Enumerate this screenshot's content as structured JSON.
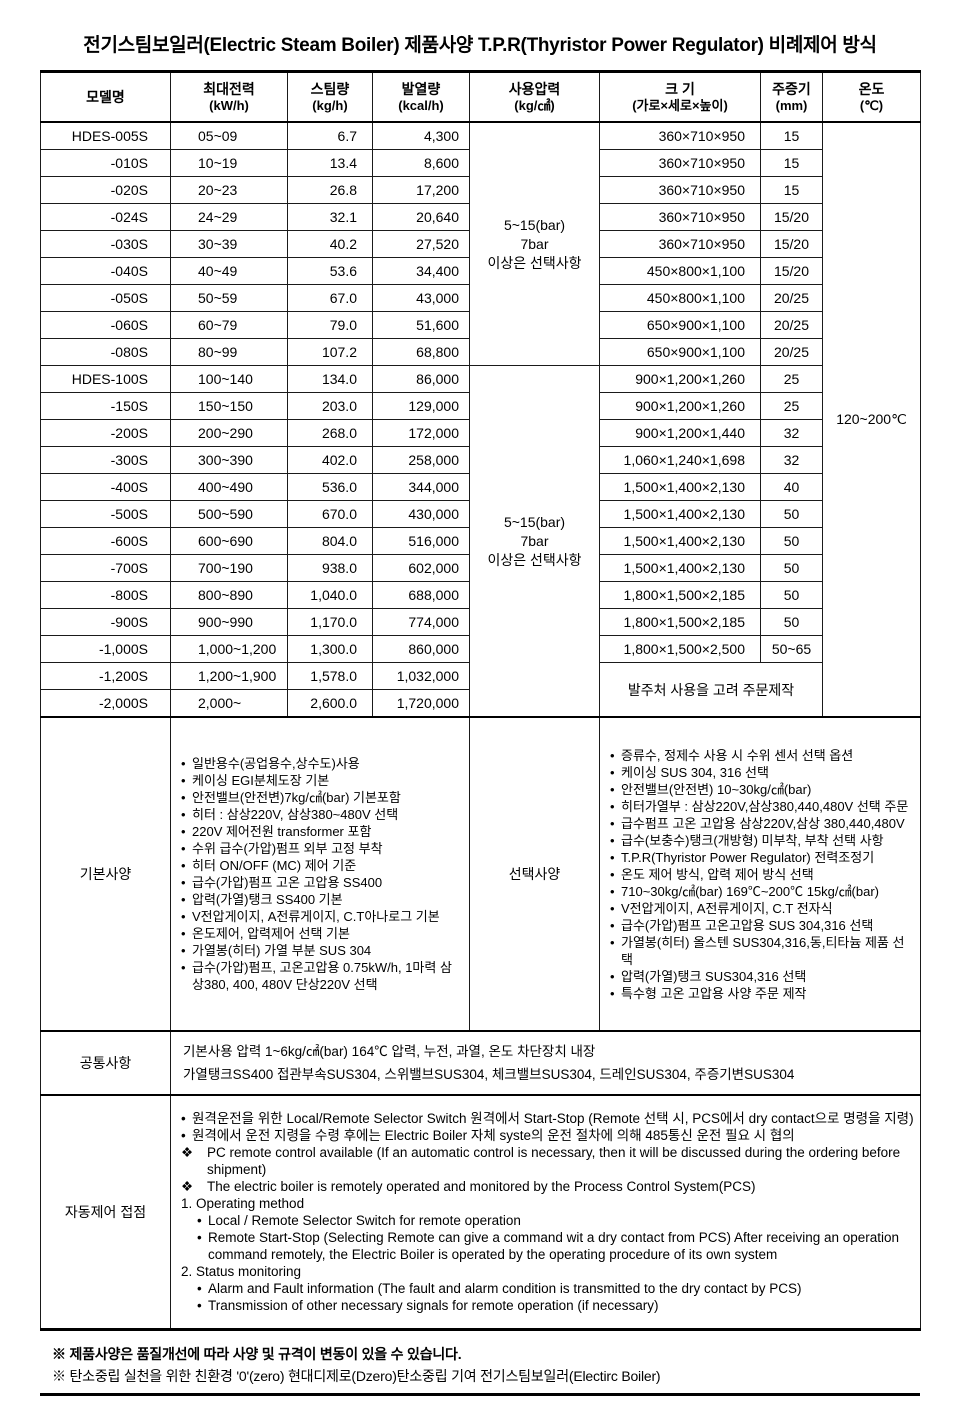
{
  "title": "전기스팀보일러(Electric Steam Boiler) 제품사양 T.P.R(Thyristor Power Regulator) 비례제어 방식",
  "spec_table": {
    "columns": [
      {
        "label": "모델명",
        "unit": ""
      },
      {
        "label": "최대전력",
        "unit": "(kW/h)"
      },
      {
        "label": "스팀량",
        "unit": "(kg/h)"
      },
      {
        "label": "발열량",
        "unit": "(kcal/h)"
      },
      {
        "label": "사용압력",
        "unit": "(kg/㎠)"
      },
      {
        "label": "크 기",
        "unit": "(가로×세로×높이)"
      },
      {
        "label": "주증기",
        "unit": "(mm)"
      },
      {
        "label": "온도",
        "unit": "(℃)"
      }
    ],
    "pressure_groups": [
      {
        "text": "5~15(bar)\n7bar\n이상은 선택사항",
        "rows": 9
      },
      {
        "text": "5~15(bar)\n7bar\n이상은 선택사항",
        "rows": 13
      }
    ],
    "temperature": {
      "text": "120~200℃",
      "rows": 22
    },
    "custom_note": {
      "text": "발주처 사용을 고려 주문제작",
      "rows": 2,
      "cols": 2
    },
    "rows": [
      {
        "model": "HDES-005S",
        "power": "05~09",
        "steam": "6.7",
        "heat": "4,300",
        "size": "360×710×950",
        "pipe": "15"
      },
      {
        "model": "-010S",
        "power": "10~19",
        "steam": "13.4",
        "heat": "8,600",
        "size": "360×710×950",
        "pipe": "15"
      },
      {
        "model": "-020S",
        "power": "20~23",
        "steam": "26.8",
        "heat": "17,200",
        "size": "360×710×950",
        "pipe": "15"
      },
      {
        "model": "-024S",
        "power": "24~29",
        "steam": "32.1",
        "heat": "20,640",
        "size": "360×710×950",
        "pipe": "15/20"
      },
      {
        "model": "-030S",
        "power": "30~39",
        "steam": "40.2",
        "heat": "27,520",
        "size": "360×710×950",
        "pipe": "15/20"
      },
      {
        "model": "-040S",
        "power": "40~49",
        "steam": "53.6",
        "heat": "34,400",
        "size": "450×800×1,100",
        "pipe": "15/20"
      },
      {
        "model": "-050S",
        "power": "50~59",
        "steam": "67.0",
        "heat": "43,000",
        "size": "450×800×1,100",
        "pipe": "20/25"
      },
      {
        "model": "-060S",
        "power": "60~79",
        "steam": "79.0",
        "heat": "51,600",
        "size": "650×900×1,100",
        "pipe": "20/25"
      },
      {
        "model": "-080S",
        "power": "80~99",
        "steam": "107.2",
        "heat": "68,800",
        "size": "650×900×1,100",
        "pipe": "20/25"
      },
      {
        "model": "HDES-100S",
        "power": "100~140",
        "steam": "134.0",
        "heat": "86,000",
        "size": "900×1,200×1,260",
        "pipe": "25"
      },
      {
        "model": "-150S",
        "power": "150~150",
        "steam": "203.0",
        "heat": "129,000",
        "size": "900×1,200×1,260",
        "pipe": "25"
      },
      {
        "model": "-200S",
        "power": "200~290",
        "steam": "268.0",
        "heat": "172,000",
        "size": "900×1,200×1,440",
        "pipe": "32"
      },
      {
        "model": "-300S",
        "power": "300~390",
        "steam": "402.0",
        "heat": "258,000",
        "size": "1,060×1,240×1,698",
        "pipe": "32"
      },
      {
        "model": "-400S",
        "power": "400~490",
        "steam": "536.0",
        "heat": "344,000",
        "size": "1,500×1,400×2,130",
        "pipe": "40"
      },
      {
        "model": "-500S",
        "power": "500~590",
        "steam": "670.0",
        "heat": "430,000",
        "size": "1,500×1,400×2,130",
        "pipe": "50"
      },
      {
        "model": "-600S",
        "power": "600~690",
        "steam": "804.0",
        "heat": "516,000",
        "size": "1,500×1,400×2,130",
        "pipe": "50"
      },
      {
        "model": "-700S",
        "power": "700~190",
        "steam": "938.0",
        "heat": "602,000",
        "size": "1,500×1,400×2,130",
        "pipe": "50"
      },
      {
        "model": "-800S",
        "power": "800~890",
        "steam": "1,040.0",
        "heat": "688,000",
        "size": "1,800×1,500×2,185",
        "pipe": "50"
      },
      {
        "model": "-900S",
        "power": "900~990",
        "steam": "1,170.0",
        "heat": "774,000",
        "size": "1,800×1,500×2,185",
        "pipe": "50"
      },
      {
        "model": "-1,000S",
        "power": "1,000~1,200",
        "steam": "1,300.0",
        "heat": "860,000",
        "size": "1,800×1,500×2,500",
        "pipe": "50~65"
      },
      {
        "model": "-1,200S",
        "power": "1,200~1,900",
        "steam": "1,578.0",
        "heat": "1,032,000"
      },
      {
        "model": "-2,000S",
        "power": "2,000~",
        "steam": "2,600.0",
        "heat": "1,720,000"
      }
    ]
  },
  "basic_spec": {
    "label": "기본사양",
    "items": [
      "일반용수(공업용수,상수도)사용",
      "케이싱 EGI분체도장 기본",
      "안전밸브(안전변)7kg/㎠(bar) 기본포함",
      "히터 : 삼상220V, 삼상380~480V 선택",
      "220V 제어전원 transformer 포함",
      "수위 급수(가압)펌프 외부 고정 부착",
      "히터 ON/OFF (MC) 제어 기준",
      "급수(가압)펌프 고온 고압용 SS400",
      "압력(가열)탱크 SS400 기본",
      "V전압게이지, A전류게이지, C.T아나로그 기본",
      "온도제어, 압력제어 선택 기본",
      "가열봉(히터) 가열 부분 SUS 304",
      "급수(가압)펌프, 고온고압용 0.75kW/h, 1마력 삼상380, 400, 480V 단상220V 선택"
    ]
  },
  "optional_spec": {
    "label": "선택사양",
    "items": [
      "증류수, 정제수 사용 시 수위 센서 선택 옵션",
      "케이싱 SUS 304, 316 선택",
      "안전밸브(안전변) 10~30kg/㎠(bar)",
      "히터가열부 : 삼상220V,삼상380,440,480V 선택 주문",
      "급수펌프 고온 고압용 삼상220V,삼상 380,440,480V",
      "급수(보충수)탱크(개방형) 미부착, 부착 선택 사항",
      "T.P.R(Thyristor Power Regulator) 전력조정기",
      "온도 제어 방식, 압력 제어 방식 선택",
      "710~30kg/㎠(bar) 169℃~200℃ 15kg/㎠(bar)",
      "V전압게이지, A전류게이지, C.T 전자식",
      "급수(가압)펌프 고온고압용 SUS 304,316 선택",
      "가열봉(히터) 올스텐 SUS304,316,동,티타늄 제품 선택",
      "압력(가열)탱크 SUS304,316 선택",
      "특수형 고온 고압용 사양 주문 제작"
    ]
  },
  "common_spec": {
    "label": "공통사항",
    "lines": [
      "기본사용 압력 1~6kg/㎠(bar) 164℃ 압력, 누전, 과열, 온도 차단장치 내장",
      "가열탱크SS400 접관부속SUS304, 스위밸브SUS304, 체크밸브SUS304, 드레인SUS304, 주증기변SUS304"
    ]
  },
  "auto_control": {
    "label": "자동제어 접점",
    "items": [
      {
        "type": "bullet",
        "text": "원격운전을 위한 Local/Remote Selector Switch 원격에서 Start-Stop (Remote 선택 시, PCS에서 dry contact으로 명령을 지령)"
      },
      {
        "type": "bullet",
        "text": "원격에서 운전 지령을 수령 후에는 Electric Boiler 자체 syste의 운전 절차에 의해 485통신 운전 필요 시 협의"
      },
      {
        "type": "diamond",
        "text": "PC remote control available (If an automatic control is necessary, then it will be discussed during the ordering before shipment)"
      },
      {
        "type": "diamond",
        "text": "The electric boiler is remotely operated and monitored by the Process Control System(PCS)"
      },
      {
        "type": "plain",
        "text": "1. Operating method"
      },
      {
        "type": "sub",
        "text": "Local / Remote Selector Switch for remote operation"
      },
      {
        "type": "sub",
        "text": "Remote Start-Stop (Selecting Remote can give a command wit a dry contact from PCS) After receiving an operation command remotely, the Electric Boiler is operated by the operating procedure of its own system"
      },
      {
        "type": "plain",
        "text": "2. Status monitoring"
      },
      {
        "type": "sub",
        "text": "Alarm and Fault information (The fault and alarm condition is transmitted to the dry contact by PCS)"
      },
      {
        "type": "sub",
        "text": "Transmission of other necessary signals for remote operation (if necessary)"
      }
    ]
  },
  "footnotes": [
    "※ 제품사양은 품질개선에 따라 사양 및 규격이 변동이 있을 수 있습니다.",
    "※ 탄소중립 실천을 위한 친환경 '0'(zero) 현대디제로(Dzero)탄소중립 기여 전기스팀보일러(Electirc Boiler)"
  ]
}
